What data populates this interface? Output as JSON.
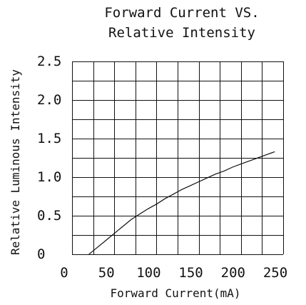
{
  "chart_data": {
    "type": "line",
    "title": [
      "Forward Current VS.",
      "Relative Intensity"
    ],
    "xlabel": "Forward Current(mA)",
    "ylabel": "Relative Luminous Intensity",
    "xlim": [
      0,
      250
    ],
    "ylim": [
      0,
      2.5
    ],
    "x_tick_labels": [
      "0",
      "50",
      "100",
      "150",
      "200",
      "250"
    ],
    "y_tick_labels": [
      "0",
      "0.5",
      "1.0",
      "1.5",
      "2.0",
      "2.5"
    ],
    "grid": true,
    "grid_x_step": 25,
    "grid_y_step": 0.25,
    "series": [
      {
        "x": [
          20,
          30,
          40,
          50,
          60,
          70,
          80,
          90,
          100,
          110,
          120,
          130,
          140,
          150,
          160,
          170,
          180,
          190,
          200,
          210,
          220,
          230,
          240
        ],
        "y": [
          0.0,
          0.09,
          0.18,
          0.27,
          0.36,
          0.45,
          0.52,
          0.59,
          0.65,
          0.72,
          0.78,
          0.84,
          0.89,
          0.94,
          0.99,
          1.04,
          1.08,
          1.13,
          1.17,
          1.21,
          1.25,
          1.29,
          1.33
        ]
      }
    ]
  }
}
